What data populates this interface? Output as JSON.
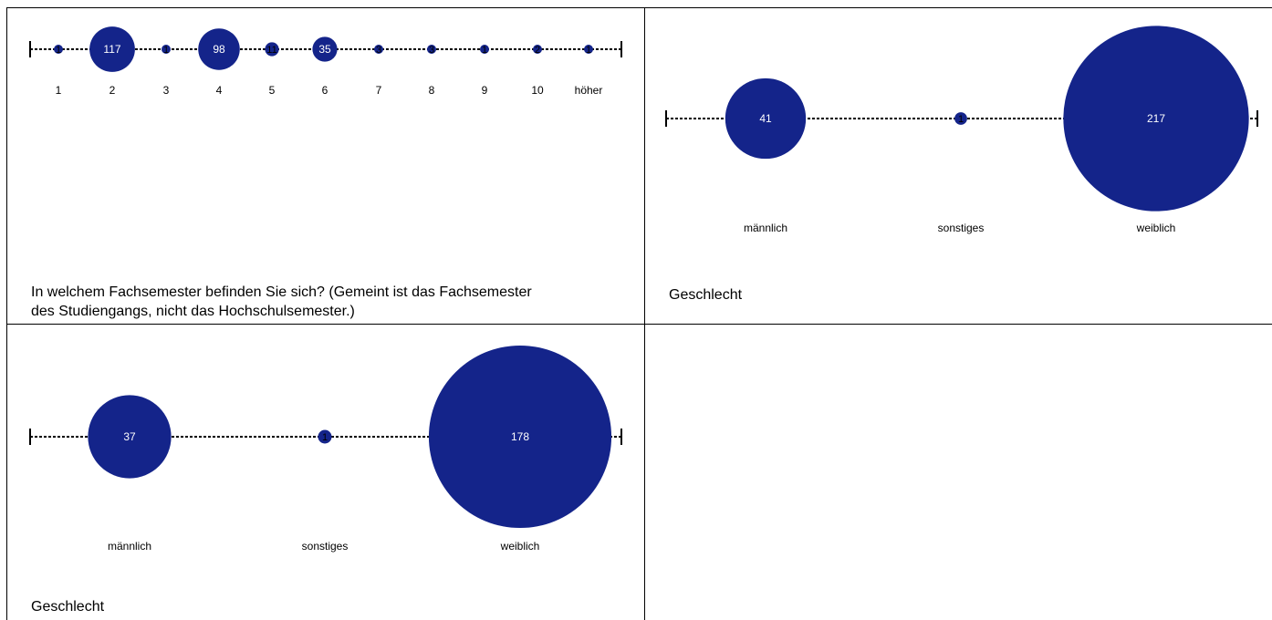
{
  "colors": {
    "bubble": "#14248a",
    "line": "#000000",
    "background": "#ffffff"
  },
  "chart_data": [
    {
      "type": "bubble",
      "title": "In welchem Fachsemester befinden Sie sich? (Gemeint ist das Fachsemester des Studiengangs, nicht das Hochschulsemester.)",
      "categories": [
        "1",
        "2",
        "3",
        "4",
        "5",
        "6",
        "7",
        "8",
        "9",
        "10",
        "höher"
      ],
      "values": [
        1,
        117,
        1,
        98,
        11,
        35,
        3,
        3,
        1,
        2,
        1
      ]
    },
    {
      "type": "bubble",
      "title": "Geschlecht",
      "categories": [
        "männlich",
        "sonstiges",
        "weiblich"
      ],
      "values": [
        41,
        1,
        217
      ]
    },
    {
      "type": "bubble",
      "title": "Geschlecht",
      "categories": [
        "männlich",
        "sonstiges",
        "weiblich"
      ],
      "values": [
        37,
        1,
        178
      ]
    }
  ],
  "panels": {
    "p1_title_line1": "In welchem Fachsemester befinden Sie sich? (Gemeint ist das Fachsemester",
    "p1_title_line2": "des Studiengangs, nicht das Hochschulsemester.)",
    "p2_title": "Geschlecht",
    "p3_title": "Geschlecht"
  }
}
